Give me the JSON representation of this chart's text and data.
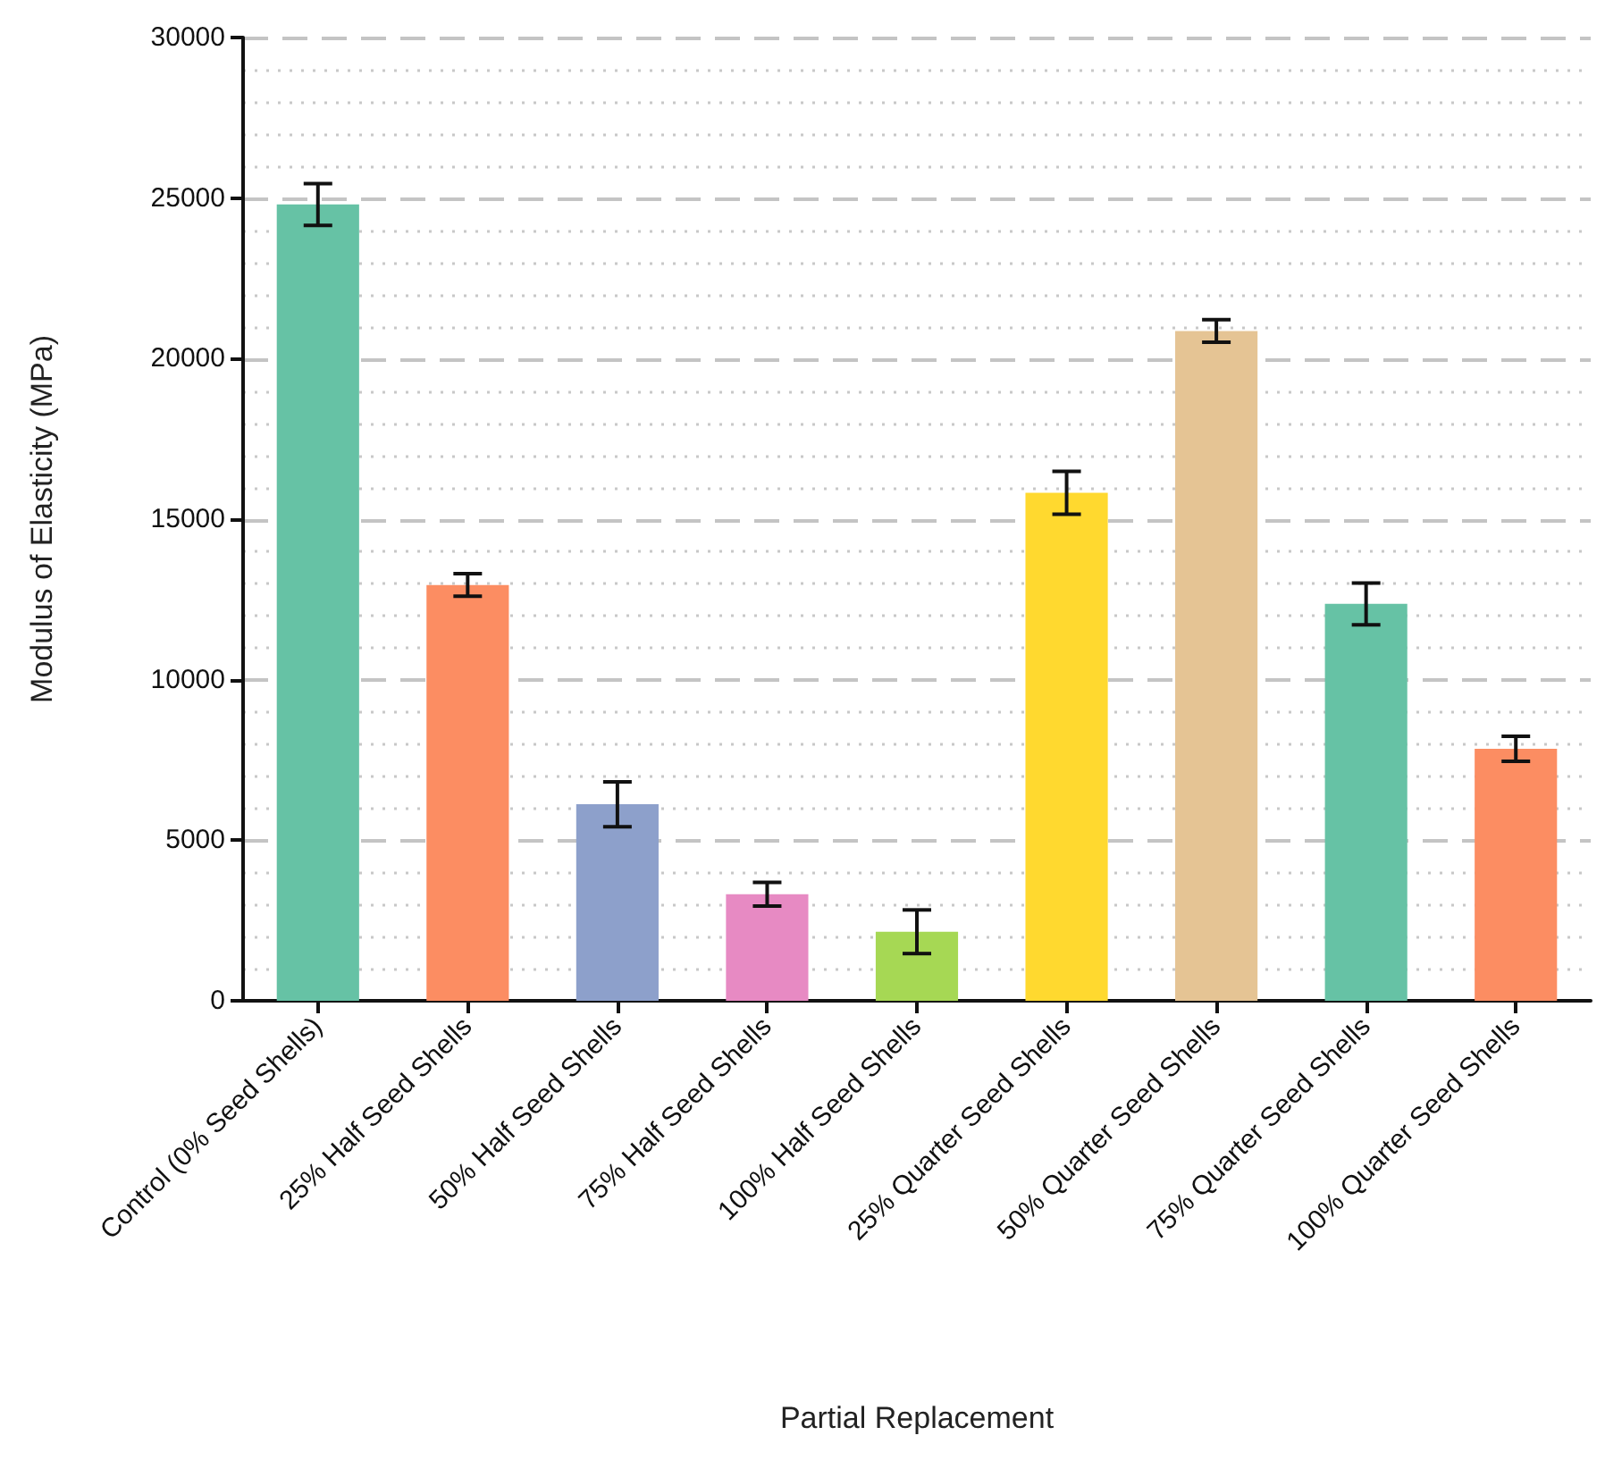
{
  "chart_data": {
    "type": "bar",
    "categories": [
      "Control (0% Seed Shells)",
      "25% Half Seed Shells",
      "50% Half Seed Shells",
      "75% Half Seed Shells",
      "100% Half Seed Shells",
      "25% Quarter Seed Shells",
      "50% Quarter Seed Shells",
      "75% Quarter Seed Shells",
      "100% Quarter Seed Shells"
    ],
    "values": [
      24800,
      12950,
      6120,
      3320,
      2150,
      15820,
      20860,
      12360,
      7850
    ],
    "errors": [
      650,
      350,
      700,
      370,
      680,
      670,
      350,
      650,
      390
    ],
    "colors": [
      "#66c2a5",
      "#fc8d62",
      "#8da0cb",
      "#e78ac3",
      "#a6d854",
      "#ffd92f",
      "#e5c494",
      "#66c2a5",
      "#fc8d62"
    ],
    "xlabel": "Partial Replacement",
    "ylabel": "Modulus of Elasticity (MPa)",
    "ylim": [
      0,
      30000
    ],
    "yticks": [
      0,
      5000,
      10000,
      15000,
      20000,
      25000,
      30000
    ],
    "grid": "y"
  }
}
